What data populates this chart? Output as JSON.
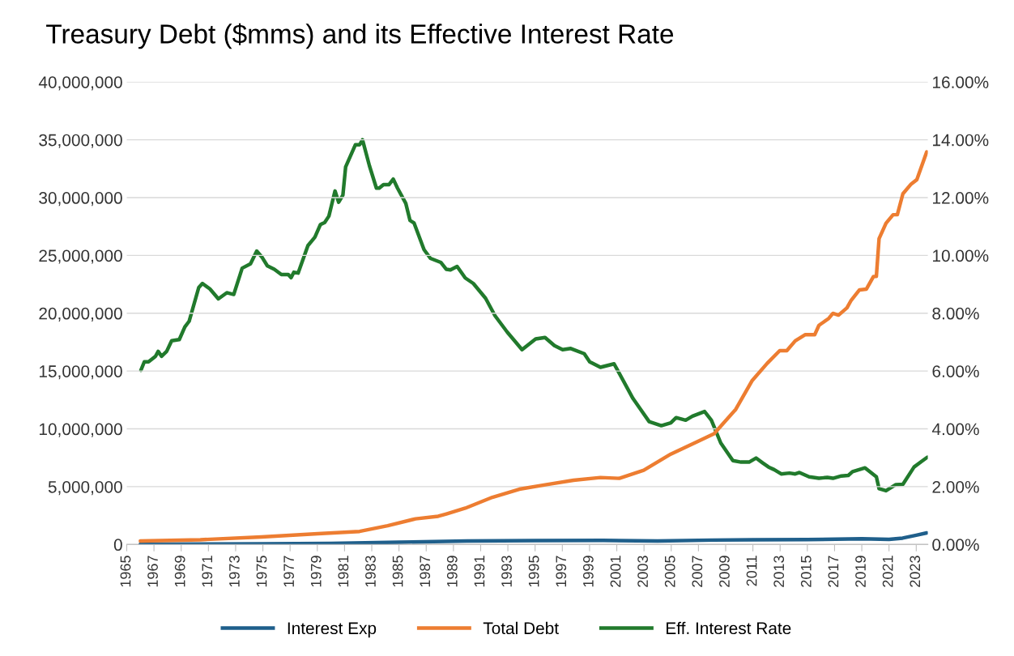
{
  "chart_data": {
    "type": "line",
    "title": "Treasury Debt ($mms) and its Effective Interest Rate",
    "xlim": [
      1965,
      2023.85
    ],
    "xticks": [
      1965,
      1967,
      1969,
      1971,
      1973,
      1975,
      1977,
      1979,
      1981,
      1983,
      1985,
      1987,
      1989,
      1991,
      1993,
      1995,
      1997,
      1999,
      2001,
      2003,
      2005,
      2007,
      2009,
      2011,
      2013,
      2015,
      2017,
      2019,
      2021,
      2023
    ],
    "ylim": [
      0,
      40000000
    ],
    "yticks": [
      {
        "value": 0,
        "label": "0"
      },
      {
        "value": 5000000,
        "label": "5,000,000"
      },
      {
        "value": 10000000,
        "label": "10,000,000"
      },
      {
        "value": 15000000,
        "label": "15,000,000"
      },
      {
        "value": 20000000,
        "label": "20,000,000"
      },
      {
        "value": 25000000,
        "label": "25,000,000"
      },
      {
        "value": 30000000,
        "label": "30,000,000"
      },
      {
        "value": 35000000,
        "label": "35,000,000"
      },
      {
        "value": 40000000,
        "label": "40,000,000"
      }
    ],
    "y2lim": [
      0,
      16
    ],
    "y2ticks": [
      {
        "value": 0,
        "label": "0.00%"
      },
      {
        "value": 2,
        "label": "2.00%"
      },
      {
        "value": 4,
        "label": "4.00%"
      },
      {
        "value": 6,
        "label": "6.00%"
      },
      {
        "value": 8,
        "label": "8.00%"
      },
      {
        "value": 10,
        "label": "10.00%"
      },
      {
        "value": 12,
        "label": "12.00%"
      },
      {
        "value": 14,
        "label": "14.00%"
      },
      {
        "value": 16,
        "label": "16.00%"
      }
    ],
    "grid": "y",
    "legend": "bottom",
    "marker": "none",
    "line_style": "solid",
    "series": [
      {
        "name": "Interest Exp",
        "color": "#1f5f8b",
        "x": [
          1966,
          1975,
          1980,
          1985,
          1990,
          1995,
          2000,
          2004,
          2008,
          2011,
          2015,
          2019,
          2021,
          2022,
          2023,
          2023.77
        ],
        "values": [
          20000,
          50000,
          100000,
          200000,
          300000,
          330000,
          350000,
          300000,
          380000,
          400000,
          420000,
          500000,
          440000,
          550000,
          800000,
          1000000
        ]
      },
      {
        "name": "Total Debt",
        "color": "#ed7d31",
        "x": [
          1966,
          1970.4,
          1974.9,
          1979.03,
          1982.1,
          1984.17,
          1986.22,
          1987.88,
          1988.48,
          1989.87,
          1991.86,
          1993.84,
          1995.83,
          1997.82,
          1999.8,
          2001.19,
          2002.98,
          2004.97,
          2006.96,
          2008.15,
          2009.74,
          2010.93,
          2012.05,
          2012.97,
          2013.49,
          2014.11,
          2014.83,
          2015.54,
          2015.85,
          2016.57,
          2016.88,
          2017.29,
          2017.91,
          2018.22,
          2018.83,
          2019.34,
          2019.86,
          2020.07,
          2020.27,
          2020.78,
          2021.3,
          2021.61,
          2022.02,
          2022.63,
          2023.04,
          2023.77
        ],
        "values": [
          300000,
          410000,
          650000,
          930000,
          1130000,
          1620000,
          2220000,
          2440000,
          2640000,
          3140000,
          4080000,
          4780000,
          5180000,
          5550000,
          5790000,
          5720000,
          6420000,
          7820000,
          8920000,
          9580000,
          11690000,
          14150000,
          15670000,
          16760000,
          16760000,
          17610000,
          18140000,
          18140000,
          18950000,
          19550000,
          19990000,
          19840000,
          20470000,
          21120000,
          22020000,
          22090000,
          23180000,
          23180000,
          26450000,
          27790000,
          28520000,
          28520000,
          30330000,
          31180000,
          31550000,
          33960000
        ]
      },
      {
        "name": "Eff. Interest Rate",
        "color": "#217a2c",
        "axis": "y2",
        "x": [
          1966.04,
          1966.29,
          1966.6,
          1967.11,
          1967.31,
          1967.56,
          1967.93,
          1968.3,
          1968.86,
          1969.27,
          1969.58,
          1970.29,
          1970.56,
          1971.11,
          1971.73,
          1972.35,
          1972.86,
          1973.48,
          1974.09,
          1974.55,
          1974.92,
          1975.33,
          1975.84,
          1976.36,
          1976.87,
          1977.07,
          1977.28,
          1977.59,
          1978.31,
          1978.82,
          1979.23,
          1979.54,
          1979.85,
          1980.3,
          1980.57,
          1980.88,
          1981.08,
          1981.8,
          1982.11,
          1982.32,
          1982.83,
          1983.34,
          1983.55,
          1983.86,
          1984.27,
          1984.58,
          1984.89,
          1985.5,
          1985.81,
          1986.11,
          1986.84,
          1987.31,
          1988.07,
          1988.48,
          1988.78,
          1989.27,
          1989.87,
          1990.46,
          1991.36,
          1992.06,
          1992.95,
          1994.04,
          1995.04,
          1995.73,
          1996.42,
          1997.02,
          1997.62,
          1998.61,
          1999.01,
          1999.8,
          2000.8,
          2002.19,
          2003.38,
          2004.27,
          2004.97,
          2005.36,
          2006.06,
          2006.56,
          2007.45,
          2007.95,
          2008.64,
          2009.53,
          2010.13,
          2010.72,
          2011.23,
          2011.72,
          2012.15,
          2012.56,
          2013.08,
          2013.69,
          2014.11,
          2014.42,
          2015.13,
          2015.85,
          2016.47,
          2016.88,
          2017.5,
          2018.01,
          2018.32,
          2019.24,
          2020.07,
          2020.27,
          2020.78,
          2021.5,
          2022.02,
          2022.84,
          2023.35,
          2023.82
        ],
        "values": [
          6.03,
          6.32,
          6.32,
          6.51,
          6.68,
          6.51,
          6.68,
          7.05,
          7.09,
          7.53,
          7.72,
          8.89,
          9.03,
          8.84,
          8.5,
          8.71,
          8.65,
          9.56,
          9.71,
          10.15,
          9.95,
          9.64,
          9.52,
          9.34,
          9.34,
          9.23,
          9.42,
          9.39,
          10.34,
          10.63,
          11.07,
          11.14,
          11.36,
          12.23,
          11.84,
          12.09,
          13.06,
          13.83,
          13.83,
          14.0,
          13.1,
          12.33,
          12.33,
          12.45,
          12.45,
          12.64,
          12.33,
          11.8,
          11.21,
          11.12,
          10.2,
          9.9,
          9.76,
          9.52,
          9.5,
          9.62,
          9.22,
          9.03,
          8.52,
          7.91,
          7.35,
          6.74,
          7.11,
          7.16,
          6.88,
          6.74,
          6.78,
          6.6,
          6.32,
          6.13,
          6.25,
          5.05,
          4.25,
          4.11,
          4.21,
          4.39,
          4.3,
          4.44,
          4.6,
          4.3,
          3.51,
          2.9,
          2.85,
          2.85,
          2.99,
          2.82,
          2.68,
          2.59,
          2.44,
          2.47,
          2.44,
          2.49,
          2.34,
          2.29,
          2.32,
          2.29,
          2.37,
          2.39,
          2.52,
          2.65,
          2.34,
          1.93,
          1.86,
          2.07,
          2.08,
          2.68,
          2.86,
          3.02
        ]
      }
    ]
  }
}
